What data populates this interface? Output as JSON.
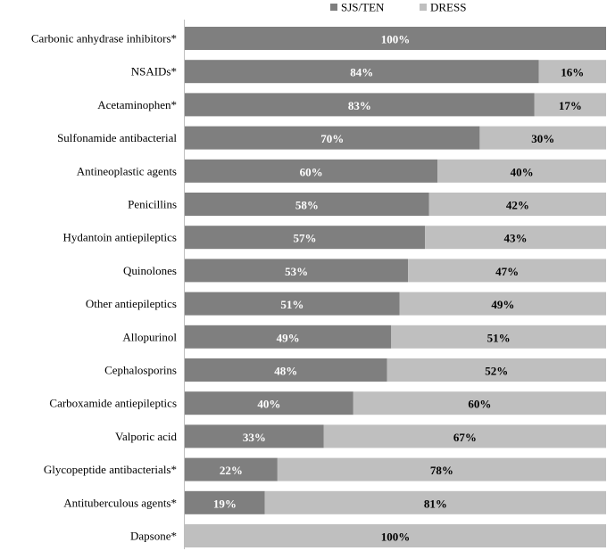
{
  "chart_data": {
    "type": "bar",
    "orientation": "horizontal",
    "stacked": true,
    "categories": [
      "Carbonic anhydrase inhibitors*",
      "NSAIDs*",
      "Acetaminophen*",
      "Sulfonamide antibacterial",
      "Antineoplastic agents",
      "Penicillins",
      "Hydantoin antiepileptics",
      "Quinolones",
      "Other antiepileptics",
      "Allopurinol",
      "Cephalosporins",
      "Carboxamide antiepileptics",
      "Valporic acid",
      "Glycopeptide antibacterials*",
      "Antituberculous agents*",
      "Dapsone*"
    ],
    "series": [
      {
        "name": "SJS/TEN",
        "color": "#7f7f7f",
        "label_color": "#ffffff",
        "values": [
          100,
          84,
          83,
          70,
          60,
          58,
          57,
          53,
          51,
          49,
          48,
          40,
          33,
          22,
          19,
          0
        ],
        "labels": [
          "100%",
          "84%",
          "83%",
          "70%",
          "60%",
          "58%",
          "57%",
          "53%",
          "51%",
          "49%",
          "48%",
          "40%",
          "33%",
          "22%",
          "19%",
          ""
        ]
      },
      {
        "name": "DRESS",
        "color": "#bfbfbf",
        "label_color": "#000000",
        "values": [
          0,
          16,
          17,
          30,
          40,
          42,
          43,
          47,
          49,
          51,
          52,
          60,
          67,
          78,
          81,
          100
        ],
        "labels": [
          "",
          "16%",
          "17%",
          "30%",
          "40%",
          "42%",
          "43%",
          "47%",
          "49%",
          "51%",
          "52%",
          "60%",
          "67%",
          "78%",
          "81%",
          "100%"
        ]
      }
    ],
    "xlim": [
      0,
      100
    ],
    "title": "",
    "xlabel": "",
    "ylabel": "",
    "grid": false,
    "legend_position": "top-right"
  }
}
